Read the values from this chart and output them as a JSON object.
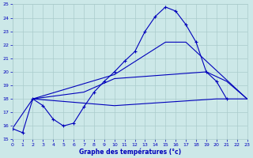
{
  "xlabel": "Graphe des températures (°c)",
  "xlim": [
    0,
    23
  ],
  "ylim": [
    15,
    25
  ],
  "yticks": [
    15,
    16,
    17,
    18,
    19,
    20,
    21,
    22,
    23,
    24,
    25
  ],
  "xticks": [
    0,
    1,
    2,
    3,
    4,
    5,
    6,
    7,
    8,
    9,
    10,
    11,
    12,
    13,
    14,
    15,
    16,
    17,
    18,
    19,
    20,
    21,
    22,
    23
  ],
  "bg_color": "#cce8e8",
  "grid_color": "#aacccc",
  "line_color": "#0000bb",
  "curve_x": [
    0,
    1,
    2,
    3,
    4,
    5,
    6,
    7,
    8,
    9,
    10,
    11,
    12,
    13,
    14,
    15,
    16,
    17,
    18,
    19,
    20,
    21
  ],
  "curve_y": [
    15.8,
    15.5,
    18.0,
    17.5,
    16.5,
    16.0,
    16.2,
    17.4,
    18.5,
    19.3,
    20.0,
    20.8,
    21.5,
    23.0,
    24.1,
    24.8,
    24.5,
    23.5,
    22.2,
    20.0,
    19.3,
    18.0
  ],
  "line_upper_x": [
    2,
    10,
    15,
    17,
    23
  ],
  "line_upper_y": [
    18.0,
    19.8,
    22.2,
    22.2,
    18.0
  ],
  "line_mid_x": [
    2,
    7,
    10,
    19,
    21,
    23
  ],
  "line_mid_y": [
    18.0,
    18.5,
    19.5,
    20.0,
    19.3,
    18.0
  ],
  "line_lower_x": [
    0,
    2,
    10,
    20,
    23
  ],
  "line_lower_y": [
    15.8,
    18.0,
    17.5,
    18.0,
    18.0
  ]
}
